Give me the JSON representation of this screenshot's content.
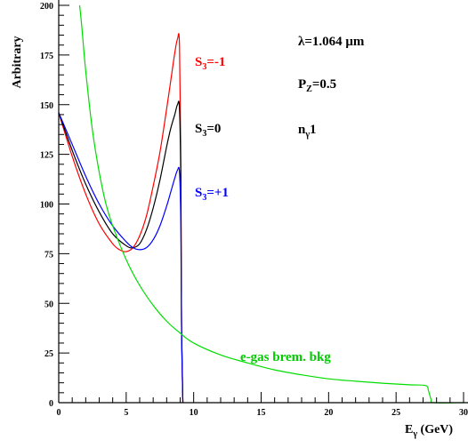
{
  "chart_data": {
    "type": "line",
    "title": "",
    "xlabel": "E",
    "xlabel_sub": "γ",
    "xlabel_unit": " (GeV)",
    "ylabel": "Arbitrary",
    "xlim": [
      0,
      30
    ],
    "ylim": [
      0,
      200
    ],
    "x_ticks": [
      0,
      5,
      10,
      15,
      20,
      25,
      30
    ],
    "x_tick_labels": [
      "0",
      "5",
      "10",
      "15",
      "20",
      "25",
      "30"
    ],
    "y_ticks": [
      0,
      25,
      50,
      75,
      100,
      125,
      150,
      175,
      200
    ],
    "y_tick_labels": [
      "0",
      "25",
      "50",
      "75",
      "100",
      "125",
      "150",
      "175",
      "200"
    ],
    "grid": false,
    "series": [
      {
        "name": "S3=-1",
        "color": "#ff0000",
        "x": [
          0,
          1,
          2,
          3,
          4,
          4.5,
          5,
          5.5,
          6,
          6.5,
          7,
          7.5,
          8,
          8.3,
          8.6,
          8.8,
          8.95,
          9.05,
          9.1,
          9.2
        ],
        "y": [
          146,
          124,
          105,
          90,
          80,
          77,
          76,
          78,
          84,
          94,
          109,
          126,
          148,
          162,
          176,
          183,
          180,
          120,
          40,
          0
        ]
      },
      {
        "name": "S3=0",
        "color": "#000000",
        "x": [
          0,
          1,
          2,
          3,
          4,
          5,
          5.5,
          6,
          6.5,
          7,
          7.5,
          8,
          8.3,
          8.6,
          8.8,
          8.95,
          9.05,
          9.1,
          9.2
        ],
        "y": [
          146,
          127,
          110,
          96,
          85,
          79,
          78,
          80,
          87,
          98,
          112,
          129,
          138,
          145,
          150,
          148,
          110,
          40,
          0
        ]
      },
      {
        "name": "S3=+1",
        "color": "#0000ff",
        "x": [
          0,
          1,
          2,
          3,
          4,
          5,
          5.5,
          6,
          6.5,
          7,
          7.5,
          8,
          8.3,
          8.6,
          8.8,
          8.95,
          9.05,
          9.1,
          9.2
        ],
        "y": [
          146,
          130,
          114,
          100,
          89,
          81,
          78,
          77,
          78,
          82,
          89,
          99,
          106,
          113,
          117,
          116,
          90,
          40,
          0
        ]
      },
      {
        "name": "e-gas brem. bkg",
        "color": "#00dd00",
        "x": [
          1.55,
          1.7,
          2,
          2.5,
          3,
          3.5,
          4,
          5,
          6,
          7,
          8,
          9,
          10,
          12,
          14,
          16,
          18,
          20,
          22,
          24,
          26,
          27.2,
          27.4,
          27.6,
          27.8,
          30
        ],
        "y": [
          200,
          190,
          167,
          137,
          116,
          100,
          89,
          72,
          59,
          49,
          41,
          35,
          30,
          24,
          20,
          16.5,
          14,
          12,
          10.8,
          9.8,
          9,
          8.6,
          6,
          1.5,
          0,
          0
        ]
      }
    ],
    "annotations": {
      "wavelength": "λ=1.064 μm",
      "pz_main": "P",
      "pz_sub": "Z",
      "pz_rest": "=0.5",
      "n_main": "n",
      "n_sub": "γ",
      "n_rest": "1",
      "s3m1_main": "S",
      "s3m1_sub": "3",
      "s3m1_rest": "=-1",
      "s30_main": "S",
      "s30_sub": "3",
      "s30_rest": "=0",
      "s3p1_main": "S",
      "s3p1_sub": "3",
      "s3p1_rest": "=+1",
      "bkg": "e-gas brem. bkg"
    }
  }
}
